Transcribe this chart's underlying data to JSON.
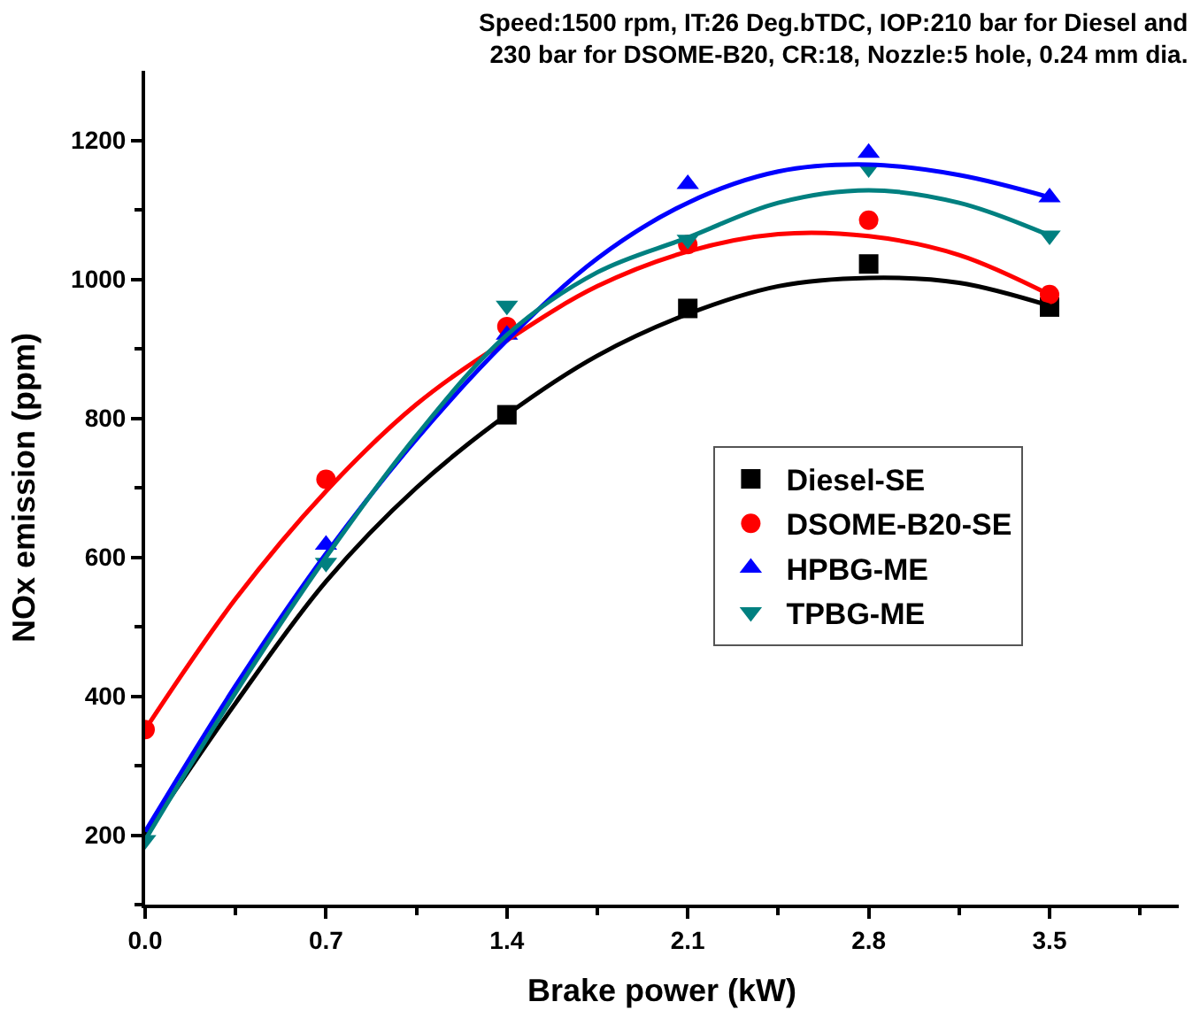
{
  "chart_data": {
    "type": "scatter",
    "title": "Speed:1500 rpm, IT:26 Deg.bTDC, IOP:210 bar for Diesel and\n230 bar for DSOME-B20, CR:18, Nozzle:5 hole, 0.24 mm dia.",
    "xlabel": "Brake power (kW)",
    "ylabel": "NOx emission (ppm)",
    "x": [
      0,
      0.7,
      1.4,
      2.1,
      2.8,
      3.5
    ],
    "series": [
      {
        "name": "Diesel-SE",
        "color": "#000000",
        "marker": "square",
        "values": [
          null,
          null,
          805,
          958,
          1022,
          960
        ]
      },
      {
        "name": "DSOME-B20-SE",
        "color": "#ff0000",
        "marker": "circle",
        "values": [
          352,
          712,
          932,
          1050,
          1085,
          978
        ]
      },
      {
        "name": "HPBG-ME",
        "color": "#0000ff",
        "marker": "triangle",
        "values": [
          null,
          618,
          920,
          1137,
          1182,
          1118
        ]
      },
      {
        "name": "TPBG-ME",
        "color": "#008080",
        "marker": "triangle-down",
        "values": [
          193,
          592,
          962,
          1057,
          1160,
          1063
        ]
      },
      {
        "type": "line",
        "color": "#000000",
        "x": [
          0,
          0.35,
          0.7,
          1.05,
          1.4,
          1.75,
          2.1,
          2.45,
          2.8,
          3.15,
          3.5
        ],
        "values": [
          200,
          390,
          565,
          700,
          805,
          890,
          950,
          990,
          1002,
          995,
          962
        ]
      },
      {
        "type": "line",
        "color": "#ff0000",
        "x": [
          0,
          0.35,
          0.7,
          1.05,
          1.4,
          1.75,
          2.1,
          2.45,
          2.8,
          3.15,
          3.5
        ],
        "values": [
          352,
          540,
          695,
          820,
          912,
          990,
          1040,
          1065,
          1062,
          1035,
          978
        ]
      },
      {
        "type": "line",
        "color": "#0000ff",
        "x": [
          0,
          0.35,
          0.7,
          1.05,
          1.4,
          1.75,
          2.1,
          2.45,
          2.8,
          3.15,
          3.5
        ],
        "values": [
          205,
          415,
          605,
          770,
          912,
          1030,
          1110,
          1155,
          1165,
          1150,
          1118
        ]
      },
      {
        "type": "line",
        "color": "#008080",
        "x": [
          0,
          0.35,
          0.7,
          1.05,
          1.4,
          1.75,
          2.1,
          2.45,
          2.8,
          3.15,
          3.5
        ],
        "values": [
          193,
          405,
          600,
          775,
          920,
          1010,
          1060,
          1110,
          1128,
          1110,
          1063
        ]
      }
    ],
    "xlim": [
      0,
      4.0
    ],
    "ylim": [
      100,
      1300
    ],
    "xticks": [
      "0.0",
      0.7,
      1.4,
      2.1,
      2.8,
      3.5
    ],
    "yticks": [
      200,
      400,
      600,
      800,
      1000,
      1200
    ],
    "legend": "right"
  }
}
